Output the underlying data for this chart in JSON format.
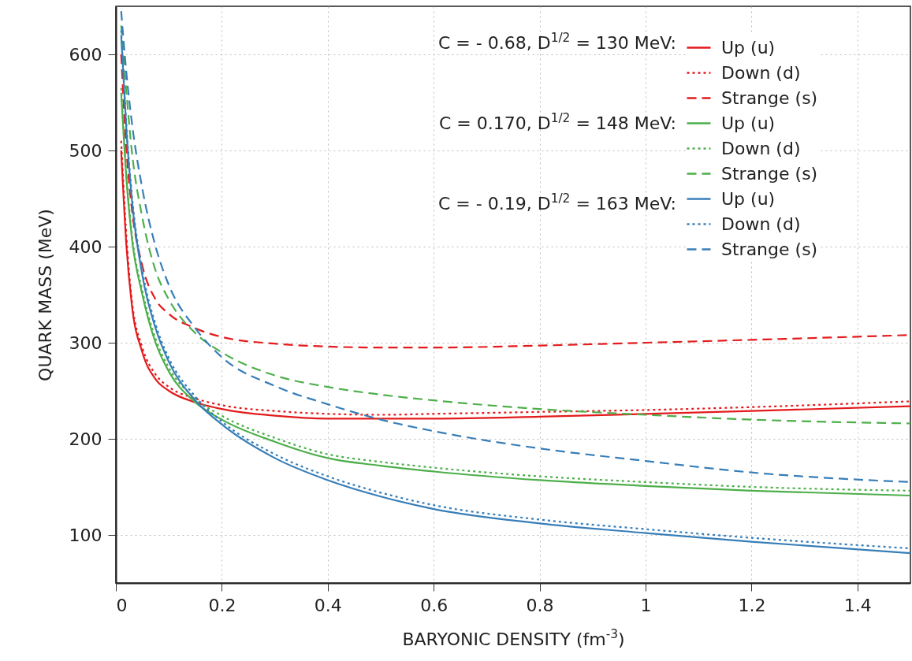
{
  "chart_data": {
    "type": "line",
    "xlabel": "BARYONIC DENSITY (fm$^{-3}$)",
    "ylabel": "QUARK MASS (MeV)",
    "x": [
      0.01,
      0.02,
      0.03,
      0.05,
      0.075,
      0.1,
      0.15,
      0.2,
      0.3,
      0.4,
      0.5,
      0.6,
      0.8,
      1.0,
      1.2,
      1.5
    ],
    "xlim": [
      0,
      1.5
    ],
    "xticks": [
      0,
      0.2,
      0.4,
      0.6,
      0.8,
      1,
      1.2,
      1.4
    ],
    "ylim": [
      50,
      650
    ],
    "yticks": [
      100,
      200,
      300,
      400,
      500,
      600
    ],
    "grid": true,
    "legend": "top right",
    "marker": "none",
    "annotations": [
      "C = - 0.68, D$^{1/2}$ = 130 MeV:",
      "C = 0.170, D$^{1/2}$ = 148 MeV:",
      "C = - 0.19, D$^{1/2}$ = 163 MeV:"
    ],
    "series": [
      {
        "name": "Up (u)",
        "color": "#e41a1c",
        "line_style": "solid",
        "values": [
          500,
          400,
          340,
          290,
          262,
          250,
          238,
          231,
          224,
          221,
          221,
          221,
          223,
          226,
          229,
          234
        ]
      },
      {
        "name": "Down (d)",
        "color": "#e41a1c",
        "line_style": "dotted",
        "values": [
          510,
          410,
          345,
          295,
          267,
          254,
          242,
          235,
          229,
          226,
          225,
          226,
          228,
          230,
          233,
          239
        ]
      },
      {
        "name": "Strange (s)",
        "color": "#e41a1c",
        "line_style": "dashed",
        "values": [
          600,
          500,
          440,
          380,
          345,
          330,
          315,
          306,
          299,
          296,
          295,
          295,
          297,
          300,
          303,
          308
        ]
      },
      {
        "name": "Up (u)",
        "color": "#4daf4a",
        "line_style": "solid",
        "values": [
          560,
          470,
          410,
          350,
          300,
          270,
          238,
          220,
          197,
          180,
          172,
          166,
          157,
          151,
          146,
          141
        ]
      },
      {
        "name": "Down (d)",
        "color": "#4daf4a",
        "line_style": "dotted",
        "values": [
          565,
          475,
          414,
          354,
          304,
          274,
          242,
          224,
          201,
          184,
          176,
          170,
          161,
          155,
          150,
          146
        ]
      },
      {
        "name": "Strange (s)",
        "color": "#4daf4a",
        "line_style": "dashed",
        "values": [
          630,
          560,
          500,
          430,
          375,
          345,
          310,
          290,
          266,
          254,
          246,
          240,
          231,
          225,
          220,
          216
        ]
      },
      {
        "name": "Up (u)",
        "color": "#377eb8",
        "line_style": "solid",
        "values": [
          620,
          520,
          450,
          370,
          315,
          280,
          240,
          215,
          180,
          157,
          140,
          127,
          112,
          102,
          93,
          81
        ]
      },
      {
        "name": "Down (d)",
        "color": "#377eb8",
        "line_style": "dotted",
        "values": [
          625,
          525,
          455,
          375,
          319,
          284,
          244,
          218,
          184,
          161,
          144,
          131,
          116,
          106,
          97,
          86
        ]
      },
      {
        "name": "Strange (s)",
        "color": "#377eb8",
        "line_style": "dashed",
        "values": [
          645,
          580,
          530,
          460,
          400,
          360,
          315,
          285,
          255,
          236,
          220,
          208,
          190,
          177,
          165,
          155
        ]
      }
    ]
  }
}
